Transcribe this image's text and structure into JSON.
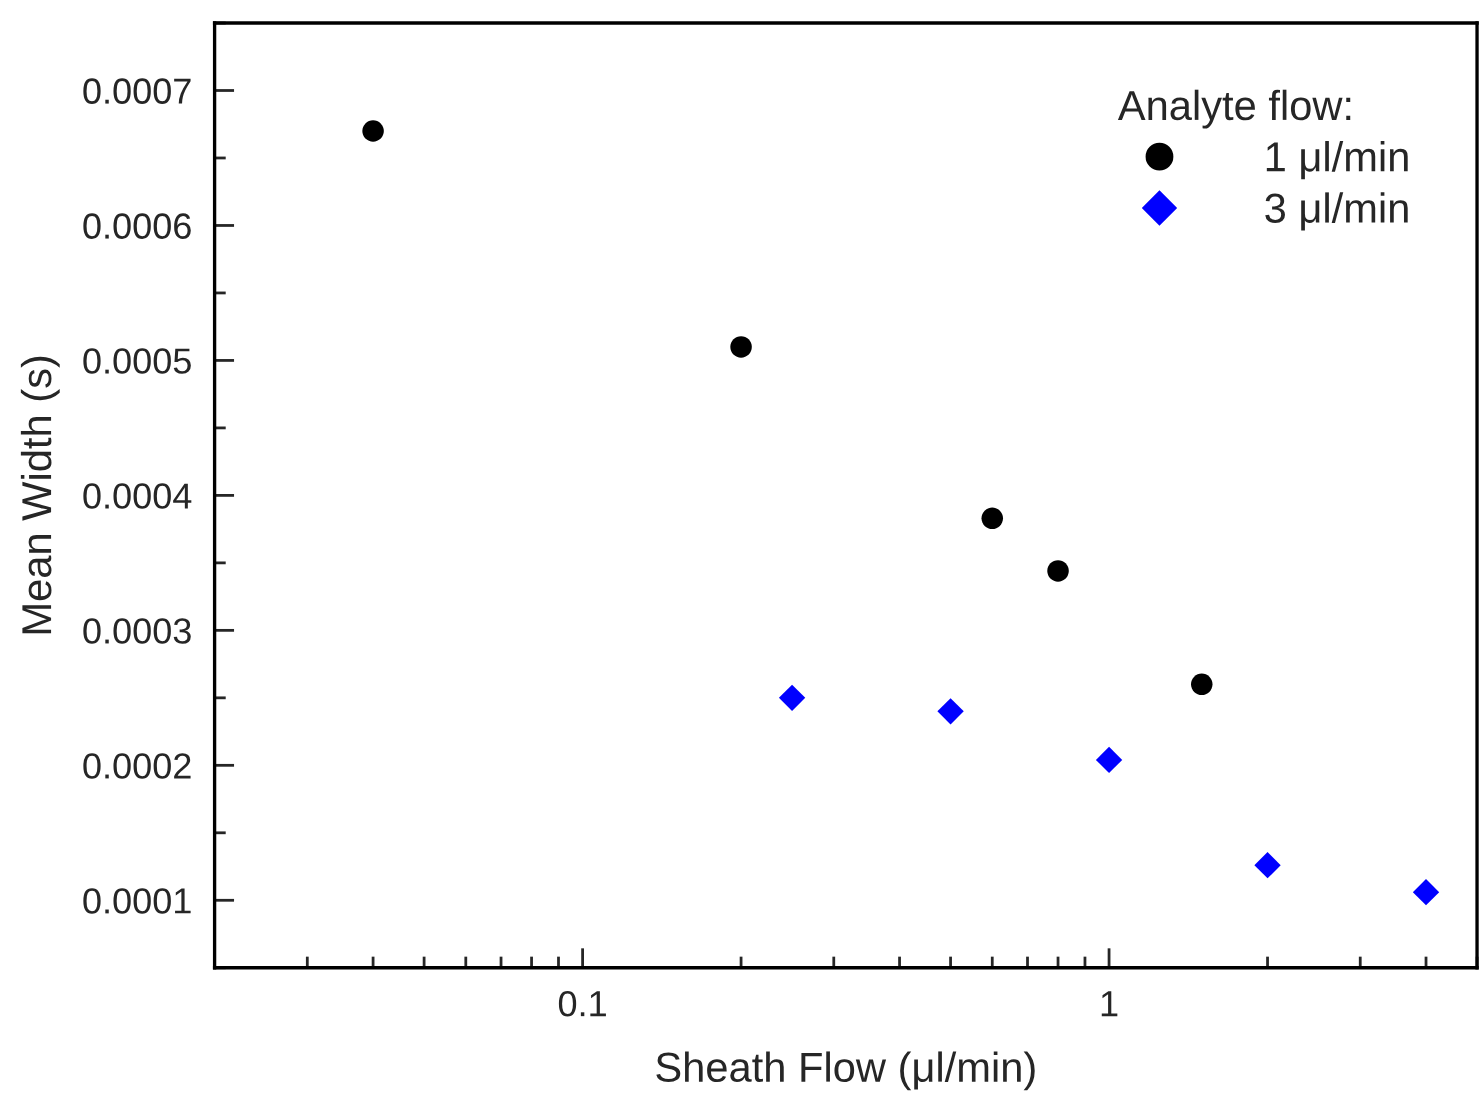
{
  "chart_data": {
    "type": "scatter",
    "xlabel": "Sheath Flow (μl/min)",
    "ylabel": "Mean Width (s)",
    "legend_title": "Analyte flow:",
    "log": "x",
    "xlim": [
      0.02,
      5
    ],
    "xticks": [
      0.1,
      1
    ],
    "ylim": [
      5e-05,
      0.00075
    ],
    "yticks": [
      0.0001,
      0.0002,
      0.0003,
      0.0004,
      0.0005,
      0.0006,
      0.0007
    ],
    "legend": "top right",
    "grid": false,
    "series": [
      {
        "name": "1 μl/min",
        "color": "#000000",
        "marker": "circle",
        "x": [
          0.04,
          0.2,
          0.6,
          0.8,
          1.5
        ],
        "values": [
          0.00067,
          0.00051,
          0.000383,
          0.000344,
          0.00026
        ]
      },
      {
        "name": "3 μl/min",
        "color": "#0000ff",
        "marker": "diamond",
        "x": [
          0.25,
          0.5,
          1,
          2,
          4
        ],
        "values": [
          0.00025,
          0.00024,
          0.000204,
          0.000126,
          0.000106
        ]
      }
    ]
  }
}
